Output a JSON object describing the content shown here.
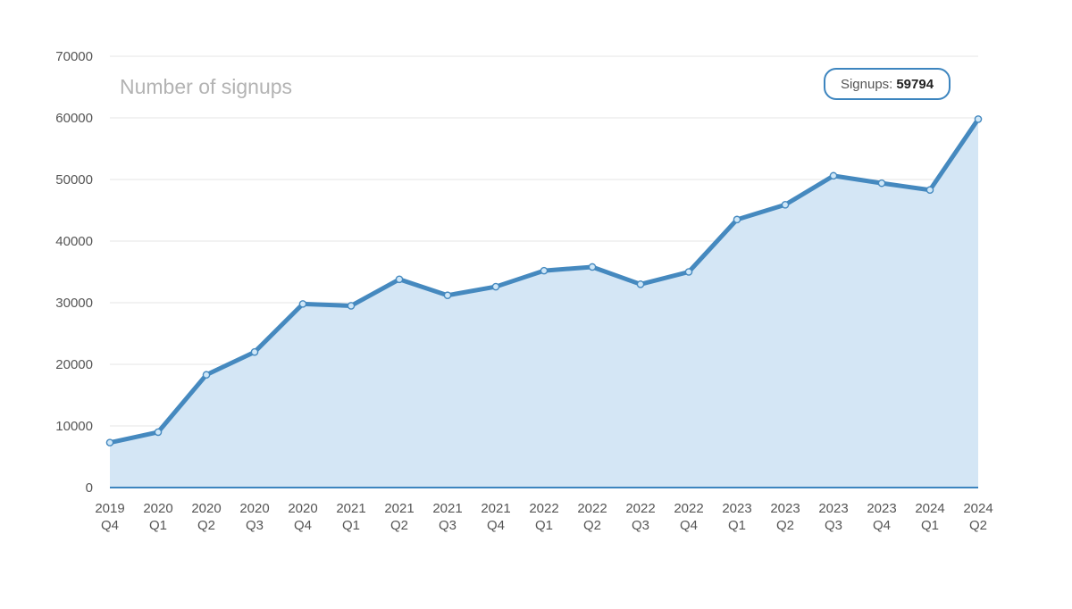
{
  "chart_data": {
    "type": "area",
    "title": "Number of signups",
    "x_labels": [
      [
        "2019",
        "Q4"
      ],
      [
        "2020",
        "Q1"
      ],
      [
        "2020",
        "Q2"
      ],
      [
        "2020",
        "Q3"
      ],
      [
        "2020",
        "Q4"
      ],
      [
        "2021",
        "Q1"
      ],
      [
        "2021",
        "Q2"
      ],
      [
        "2021",
        "Q3"
      ],
      [
        "2021",
        "Q4"
      ],
      [
        "2022",
        "Q1"
      ],
      [
        "2022",
        "Q2"
      ],
      [
        "2022",
        "Q3"
      ],
      [
        "2022",
        "Q4"
      ],
      [
        "2023",
        "Q1"
      ],
      [
        "2023",
        "Q2"
      ],
      [
        "2023",
        "Q3"
      ],
      [
        "2023",
        "Q4"
      ],
      [
        "2024",
        "Q1"
      ],
      [
        "2024",
        "Q2"
      ]
    ],
    "series": [
      {
        "values": [
          7300,
          9000,
          18300,
          22000,
          29800,
          29500,
          33800,
          31200,
          32600,
          35200,
          35800,
          33000,
          35000,
          43500,
          45900,
          50600,
          49400,
          48300,
          59794
        ]
      }
    ],
    "ylim": [
      0,
      70000
    ],
    "y_ticks": [
      0,
      10000,
      20000,
      30000,
      40000,
      50000,
      60000,
      70000
    ],
    "grid": true,
    "colors": {
      "line": "#4589bf",
      "fill": "#d4e6f5",
      "marker_fill": "#cfe7f8",
      "grid": "#e6e6e6",
      "axis": "#3d85bf"
    },
    "tooltip": {
      "label": "Signups:",
      "value": "59794"
    }
  }
}
